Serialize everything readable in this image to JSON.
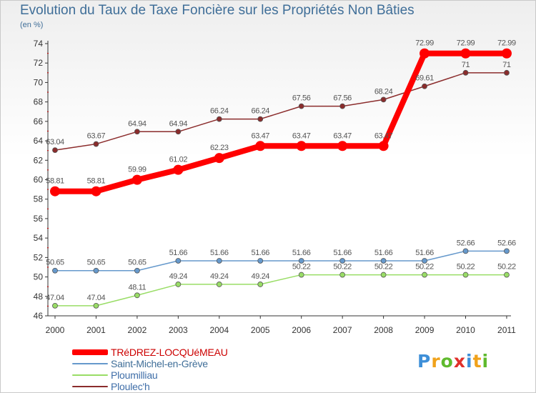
{
  "title": "Evolution du Taux de Taxe Foncière sur les Propriétés Non Bâties",
  "unit_label": "(en %)",
  "logo": {
    "text": "Proxiti",
    "letter_colors": [
      "#3e8fd8",
      "#f0a21b",
      "#5fba2e",
      "#e0302a",
      "#3e8fd8",
      "#f0a21b",
      "#5fba2e"
    ]
  },
  "colors": {
    "axis": "#333333",
    "grid_tick": "#cc0000",
    "label": "#555555"
  },
  "chart_data": {
    "type": "line",
    "title": "Evolution du Taux de Taxe Foncière sur les Propriétés Non Bâties",
    "ylabel": "(en %)",
    "x": [
      "2000",
      "2001",
      "2002",
      "2003",
      "2004",
      "2005",
      "2006",
      "2007",
      "2008",
      "2009",
      "2010",
      "2011"
    ],
    "ylim": [
      46,
      74
    ],
    "yticks": [
      46,
      48,
      50,
      52,
      54,
      56,
      58,
      60,
      62,
      64,
      66,
      68,
      70,
      72,
      74
    ],
    "grid": false,
    "legend_position": "bottom-left",
    "series": [
      {
        "name": "TRéDREZ-LOCQUéMEAU",
        "color": "#ff0000",
        "width": 8,
        "marker": 7,
        "labels_below": false,
        "values": [
          58.81,
          58.81,
          59.99,
          61.02,
          62.23,
          63.47,
          63.47,
          63.47,
          63.47,
          72.99,
          72.99,
          72.99
        ],
        "labels": [
          "58.81",
          "58.81",
          "59.99",
          "61.02",
          "62.23",
          "63.47",
          "63.47",
          "63.47",
          "63.47",
          "72.99",
          "72.99",
          "72.99"
        ]
      },
      {
        "name": "Saint-Michel-en-Grève",
        "color": "#6699cc",
        "width": 1.5,
        "marker": 3.5,
        "labels_below": false,
        "values": [
          50.65,
          50.65,
          50.65,
          51.66,
          51.66,
          51.66,
          51.66,
          51.66,
          51.66,
          51.66,
          52.66,
          52.66
        ],
        "labels": [
          "50.65",
          "50.65",
          "50.65",
          "51.66",
          "51.66",
          "51.66",
          "51.66",
          "51.66",
          "51.66",
          "51.66",
          "52.66",
          "52.66"
        ]
      },
      {
        "name": "Ploumilliau",
        "color": "#99dd66",
        "width": 1.5,
        "marker": 3.5,
        "labels_below": false,
        "values": [
          47.04,
          47.04,
          48.11,
          49.24,
          49.24,
          49.24,
          50.22,
          50.22,
          50.22,
          50.22,
          50.22,
          50.22
        ],
        "labels": [
          "47.04",
          "47.04",
          "48.11",
          "49.24",
          "49.24",
          "49.24",
          "50.22",
          "50.22",
          "50.22",
          "50.22",
          "50.22",
          "50.22"
        ]
      },
      {
        "name": "Ploulec'h",
        "color": "#8b2c2c",
        "width": 1.5,
        "marker": 3.5,
        "labels_below": false,
        "values": [
          63.04,
          63.67,
          64.94,
          64.94,
          66.24,
          66.24,
          67.56,
          67.56,
          68.24,
          69.61,
          71,
          71
        ],
        "labels": [
          "63.04",
          "63.67",
          "64.94",
          "64.94",
          "66.24",
          "66.24",
          "67.56",
          "67.56",
          "68.24",
          "69.61",
          "71",
          "71"
        ]
      }
    ]
  }
}
